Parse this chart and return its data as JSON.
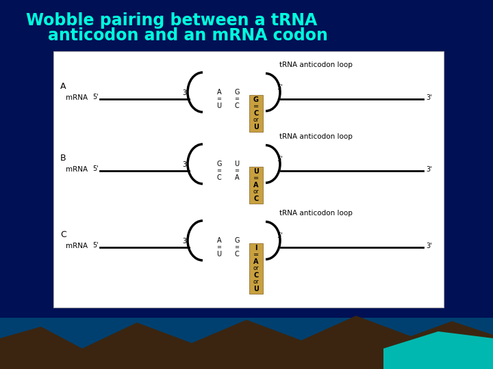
{
  "title_line1": "Wobble pairing between a tRNA",
  "title_line2": "anticodon and an mRNA codon",
  "title_color": "#00FFDD",
  "bg_color": "#001055",
  "panel_bg": "#FFFFFF",
  "tan_color": "#C8A040",
  "rows": [
    {
      "label": "A",
      "left_pair1": [
        "A",
        "U"
      ],
      "left_pair2": [
        "G",
        "C"
      ],
      "box_content": [
        "G",
        "=",
        "C",
        "or",
        "U"
      ]
    },
    {
      "label": "B",
      "left_pair1": [
        "G",
        "C"
      ],
      "left_pair2": [
        "U",
        "A"
      ],
      "box_content": [
        "U",
        "=",
        "A",
        "or",
        "C"
      ]
    },
    {
      "label": "C",
      "left_pair1": [
        "A",
        "U"
      ],
      "left_pair2": [
        "G",
        "C"
      ],
      "box_content": [
        "I",
        "=",
        "A",
        "or",
        "C",
        "or",
        "U"
      ]
    }
  ],
  "trna_label": "tRNA anticodon loop",
  "mrna_label": "mRNA"
}
